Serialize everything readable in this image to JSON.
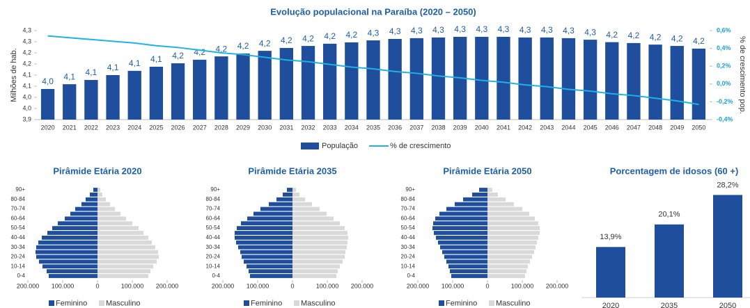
{
  "chart_data": [
    {
      "type": "combo",
      "title": "Evolução populacional na Paraíba (2020 – 2050)",
      "y_label": "Milhões de hab.",
      "y2_label": "% de crescimento pop.",
      "categories": [
        "2020",
        "2021",
        "2022",
        "2023",
        "2024",
        "2025",
        "2026",
        "2027",
        "2028",
        "2029",
        "2030",
        "2031",
        "2032",
        "2033",
        "2034",
        "2035",
        "2036",
        "2037",
        "2038",
        "2039",
        "2040",
        "2041",
        "2042",
        "2043",
        "2044",
        "2045",
        "2046",
        "2047",
        "2048",
        "2049",
        "2050"
      ],
      "ylim": [
        3.9,
        4.3
      ],
      "yticks": [
        {
          "value": 3.9,
          "label": "3,9"
        },
        {
          "value": 3.95,
          "label": "4,0"
        },
        {
          "value": 4.0,
          "label": "4,0"
        },
        {
          "value": 4.05,
          "label": "4,1"
        },
        {
          "value": 4.1,
          "label": "4,1"
        },
        {
          "value": 4.15,
          "label": "4,2"
        },
        {
          "value": 4.2,
          "label": "4,2"
        },
        {
          "value": 4.25,
          "label": "4,3"
        },
        {
          "value": 4.3,
          "label": "4,3"
        }
      ],
      "y2lim": [
        -0.4,
        0.6
      ],
      "y2ticks": [
        {
          "value": -0.4,
          "label": "-0,4%"
        },
        {
          "value": -0.2,
          "label": "-0,2%"
        },
        {
          "value": 0,
          "label": "0,0%"
        },
        {
          "value": 0.2,
          "label": "0,2%"
        },
        {
          "value": 0.4,
          "label": "0,4%"
        },
        {
          "value": 0.6,
          "label": "0,6%"
        }
      ],
      "series": [
        {
          "name": "População",
          "type": "bar",
          "color": "#1f4e9c",
          "values": [
            4.0375,
            4.059,
            4.078,
            4.1,
            4.119,
            4.1375,
            4.153,
            4.169,
            4.184,
            4.197,
            4.209,
            4.222,
            4.231,
            4.241,
            4.247,
            4.256,
            4.2625,
            4.266,
            4.269,
            4.272,
            4.272,
            4.272,
            4.269,
            4.269,
            4.266,
            4.259,
            4.248,
            4.244,
            4.237,
            4.231,
            4.219
          ],
          "value_labels": [
            "4,0",
            "4,1",
            "4,1",
            "4,1",
            "4,1",
            "4,1",
            "4,2",
            "4,2",
            "4,2",
            "4,2",
            "4,2",
            "4,2",
            "4,2",
            "4,2",
            "4,2",
            "4,3",
            "4,3",
            "4,3",
            "4,3",
            "4,3",
            "4,3",
            "4,3",
            "4,3",
            "4,3",
            "4,3",
            "4,3",
            "4,2",
            "4,2",
            "4,2",
            "4,2",
            "4,2"
          ]
        },
        {
          "name": "% de crescimento",
          "type": "line",
          "axis": "y2",
          "color": "#1fb2e6",
          "values": [
            0.54,
            0.52,
            0.5,
            0.48,
            0.46,
            0.43,
            0.41,
            0.38,
            0.35,
            0.33,
            0.3,
            0.27,
            0.25,
            0.22,
            0.19,
            0.17,
            0.14,
            0.12,
            0.09,
            0.07,
            0.04,
            0.02,
            -0.01,
            -0.03,
            -0.06,
            -0.08,
            -0.11,
            -0.13,
            -0.16,
            -0.19,
            -0.23
          ]
        }
      ]
    },
    {
      "type": "pyramid",
      "title": "Pirâmide Etária 2020",
      "categories": [
        "0-4",
        null,
        "10-14",
        null,
        "20-24",
        null,
        "30-34",
        null,
        "40-44",
        null,
        "50-54",
        null,
        "60-64",
        null,
        "70-74",
        null,
        "80-84",
        null,
        "90+"
      ],
      "xlim": [
        -200000,
        200000
      ],
      "xticks": [
        {
          "value": -200000,
          "label": "200.000"
        },
        {
          "value": -100000,
          "label": "100.000"
        },
        0,
        {
          "value": 100000,
          "label": "100.000"
        },
        {
          "value": 200000,
          "label": "200.000"
        }
      ],
      "series": [
        {
          "name": "Feminino",
          "color": "#1f4e9c",
          "values": [
            -140000,
            -146000,
            -158000,
            -168000,
            -176000,
            -178000,
            -176000,
            -170000,
            -160000,
            -144000,
            -130000,
            -114000,
            -94000,
            -78000,
            -64000,
            -46000,
            -34000,
            -22000,
            -12000
          ]
        },
        {
          "name": "Masculino",
          "color": "#d9d9d9",
          "values": [
            146000,
            152000,
            160000,
            170000,
            176000,
            174000,
            166000,
            156000,
            146000,
            132000,
            118000,
            100000,
            82000,
            66000,
            50000,
            36000,
            24000,
            14000,
            8000
          ]
        }
      ]
    },
    {
      "type": "pyramid",
      "title": "Pirâmide Etária 2035",
      "categories": [
        "0-4",
        null,
        "10-14",
        null,
        "20-24",
        null,
        "30-34",
        null,
        "40-44",
        null,
        "50-54",
        null,
        "60-64",
        null,
        "70-74",
        null,
        "80-84",
        null,
        "90+"
      ],
      "xlim": [
        -200000,
        200000
      ],
      "xticks": [
        {
          "value": -200000,
          "label": "200.000"
        },
        {
          "value": -100000,
          "label": "100.000"
        },
        0,
        {
          "value": 100000,
          "label": "100.000"
        },
        {
          "value": 200000,
          "label": "200.000"
        }
      ],
      "series": [
        {
          "name": "Feminino",
          "color": "#1f4e9c",
          "values": [
            -122000,
            -126000,
            -132000,
            -140000,
            -146000,
            -150000,
            -156000,
            -162000,
            -166000,
            -166000,
            -160000,
            -148000,
            -130000,
            -112000,
            -92000,
            -68000,
            -46000,
            -28000,
            -16000
          ]
        },
        {
          "name": "Masculino",
          "color": "#d9d9d9",
          "values": [
            126000,
            130000,
            136000,
            144000,
            150000,
            152000,
            156000,
            158000,
            160000,
            158000,
            150000,
            136000,
            118000,
            98000,
            78000,
            56000,
            36000,
            20000,
            10000
          ]
        }
      ]
    },
    {
      "type": "pyramid",
      "title": "Pirâmide Etária 2050",
      "categories": [
        "0-4",
        null,
        "10-14",
        null,
        "20-24",
        null,
        "30-34",
        null,
        "40-44",
        null,
        "50-54",
        null,
        "60-64",
        null,
        "70-74",
        null,
        "80-84",
        null,
        "90+"
      ],
      "xlim": [
        -200000,
        200000
      ],
      "xticks": [
        {
          "value": -200000,
          "label": "200.000"
        },
        {
          "value": -100000,
          "label": "100.000"
        },
        0,
        {
          "value": 100000,
          "label": "100.000"
        },
        {
          "value": 200000,
          "label": "200.000"
        }
      ],
      "series": [
        {
          "name": "Feminino",
          "color": "#1f4e9c",
          "values": [
            -104000,
            -108000,
            -112000,
            -118000,
            -124000,
            -130000,
            -136000,
            -142000,
            -148000,
            -154000,
            -158000,
            -156000,
            -150000,
            -138000,
            -118000,
            -94000,
            -70000,
            -44000,
            -24000
          ]
        },
        {
          "name": "Masculino",
          "color": "#d9d9d9",
          "values": [
            108000,
            112000,
            116000,
            122000,
            128000,
            134000,
            138000,
            142000,
            146000,
            150000,
            150000,
            146000,
            136000,
            120000,
            100000,
            76000,
            52000,
            30000,
            14000
          ]
        }
      ]
    },
    {
      "type": "bar",
      "title": "Porcentagem de idosos (60 +)",
      "categories": [
        "2020",
        "2035",
        "2050"
      ],
      "values": [
        13.9,
        20.1,
        28.2
      ],
      "value_labels": [
        "13,9%",
        "20,1%",
        "28,2%"
      ],
      "color": "#1f4e9c",
      "ylim": [
        0,
        30
      ]
    }
  ]
}
